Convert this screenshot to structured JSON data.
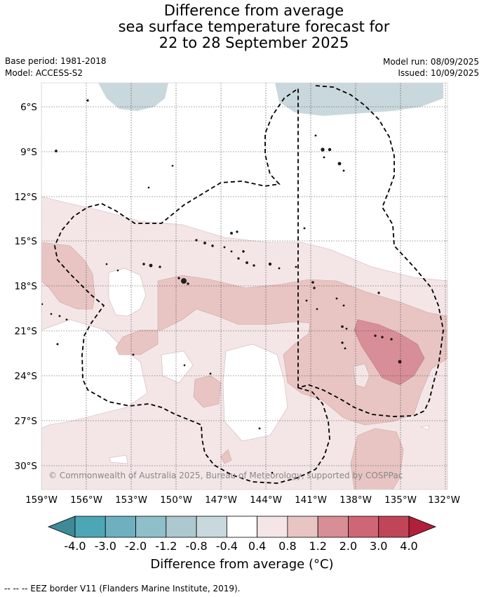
{
  "title": {
    "line1": "Difference from average",
    "line2": "sea surface temperature forecast for",
    "line3": "22 to 28 September 2025"
  },
  "meta": {
    "base_period": "Base period: 1981-2018",
    "model": "Model: ACCESS-S2",
    "model_run": "Model run: 08/09/2025",
    "issued": "Issued: 10/09/2025"
  },
  "map": {
    "lat_labels": [
      "6°S",
      "9°S",
      "12°S",
      "15°S",
      "18°S",
      "21°S",
      "24°S",
      "27°S",
      "30°S"
    ],
    "lon_labels": [
      "159°W",
      "156°W",
      "153°W",
      "150°W",
      "147°W",
      "144°W",
      "141°W",
      "138°W",
      "135°W",
      "132°W"
    ],
    "copyright": "© Commonwealth of Australia 2025, Bureau of Meteorology, supported by COSPPac"
  },
  "colorbar": {
    "tick_labels": [
      "-4.0",
      "-3.0",
      "-2.0",
      "-1.2",
      "-0.8",
      "-0.4",
      "0.4",
      "0.8",
      "1.2",
      "2.0",
      "3.0",
      "4.0"
    ],
    "colors": [
      "#3f8a96",
      "#4da6b6",
      "#6eb0c0",
      "#8fbfc8",
      "#adc8ce",
      "#c9d8dc",
      "#ffffff",
      "#f4e6e6",
      "#e8c5c3",
      "#d88e96",
      "#cf6674",
      "#c04558",
      "#b0203a"
    ],
    "title": "Difference from average (°C)"
  },
  "footnote": "--  --  -- EEZ border V11 (Flanders Marine Institute, 2019)."
}
